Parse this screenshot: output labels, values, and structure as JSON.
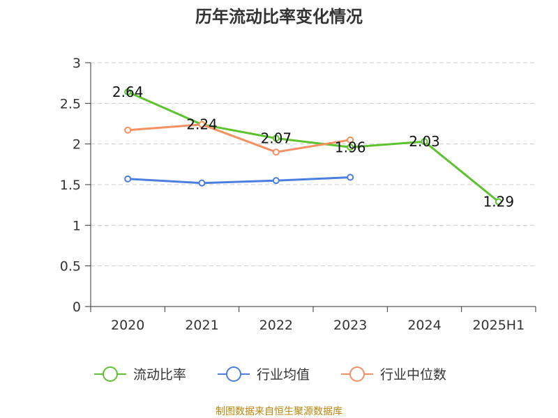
{
  "chart_data": {
    "type": "line",
    "title": "历年流动比率变化情况",
    "categories": [
      "2020",
      "2021",
      "2022",
      "2023",
      "2024",
      "2025H1"
    ],
    "yticks": [
      "0",
      "0.5",
      "1",
      "1.5",
      "2",
      "2.5",
      "3"
    ],
    "ylim": [
      0,
      3
    ],
    "grid": true,
    "legend_position": "bottom",
    "series": [
      {
        "name": "流动比率",
        "color": "#5cc32d",
        "values": [
          2.64,
          2.24,
          2.07,
          1.96,
          2.03,
          1.29
        ],
        "labels": [
          "2.64",
          "2.24",
          "2.07",
          "1.96",
          "2.03",
          "1.29"
        ]
      },
      {
        "name": "行业均值",
        "color": "#4a7fdf",
        "values": [
          1.57,
          1.52,
          1.55,
          1.59,
          null,
          null
        ]
      },
      {
        "name": "行业中位数",
        "color": "#f59060",
        "values": [
          2.17,
          2.24,
          1.9,
          2.05,
          null,
          null
        ]
      }
    ]
  },
  "source": "制图数据来自恒生聚源数据库"
}
